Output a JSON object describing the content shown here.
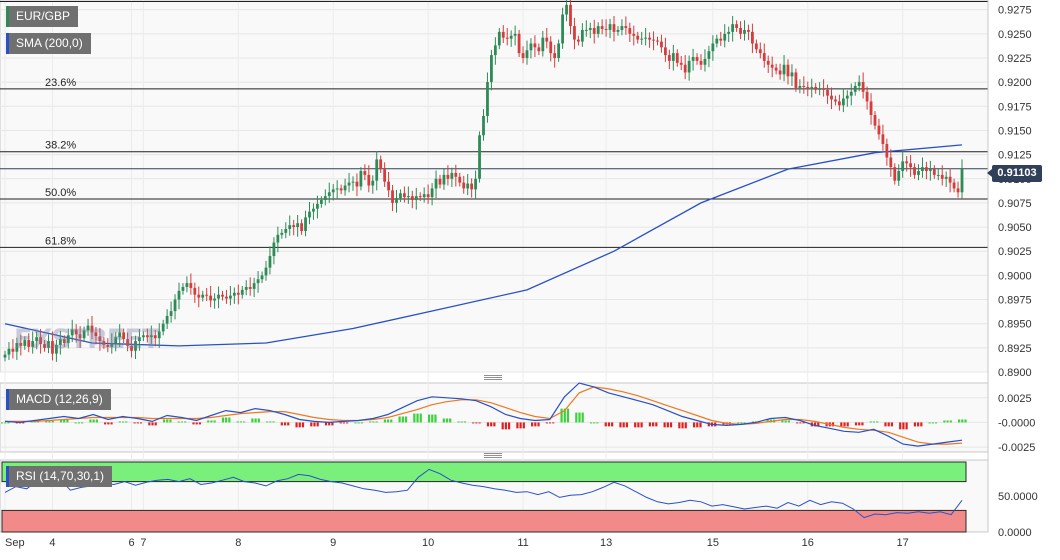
{
  "symbol_label": "EUR/GBP",
  "watermark": "FXSTREET",
  "last_price_label": "0.91103",
  "colors": {
    "up": "#2e8b57",
    "down": "#d63c3c",
    "sma": "#2850c8",
    "macd": "#2850c8",
    "signal": "#f07820",
    "rsi": "#2850c8",
    "overbought": "#7bef7b",
    "oversold": "#f38a8a"
  },
  "chart_data": [
    {
      "type": "candlestick",
      "title": "EUR/GBP",
      "ylim": [
        0.89,
        0.9285
      ],
      "y_ticks": [
        "0.9275",
        "0.9250",
        "0.9225",
        "0.9200",
        "0.9175",
        "0.9150",
        "0.9125",
        "0.9100",
        "0.9075",
        "0.9050",
        "0.9025",
        "0.9000",
        "0.8975",
        "0.8950",
        "0.8925",
        "0.8900"
      ],
      "x_tick_labels": [
        {
          "label": "Sep",
          "bar": 0
        },
        {
          "label": "4",
          "bar": 12
        },
        {
          "label": "6",
          "bar": 32
        },
        {
          "label": "7",
          "bar": 35
        },
        {
          "label": "8",
          "bar": 59
        },
        {
          "label": "9",
          "bar": 83
        },
        {
          "label": "10",
          "bar": 107
        },
        {
          "label": "11",
          "bar": 131
        },
        {
          "label": "13",
          "bar": 152
        },
        {
          "label": "15",
          "bar": 179
        },
        {
          "label": "16",
          "bar": 203
        },
        {
          "label": "17",
          "bar": 227
        }
      ],
      "closes": [
        0.8918,
        0.8924,
        0.8921,
        0.893,
        0.8927,
        0.8933,
        0.8926,
        0.8932,
        0.8936,
        0.8929,
        0.8925,
        0.8932,
        0.8919,
        0.8928,
        0.8934,
        0.893,
        0.8938,
        0.8944,
        0.8939,
        0.8935,
        0.8943,
        0.8948,
        0.8941,
        0.8937,
        0.8932,
        0.8928,
        0.8926,
        0.893,
        0.8936,
        0.8941,
        0.8934,
        0.8927,
        0.8922,
        0.8932,
        0.8936,
        0.8938,
        0.8936,
        0.8938,
        0.8935,
        0.8942,
        0.895,
        0.8958,
        0.8963,
        0.8975,
        0.8984,
        0.8988,
        0.8992,
        0.8987,
        0.898,
        0.8977,
        0.898,
        0.8979,
        0.8974,
        0.8976,
        0.898,
        0.8978,
        0.8976,
        0.8979,
        0.8982,
        0.898,
        0.8985,
        0.8988,
        0.8986,
        0.8992,
        0.8996,
        0.9,
        0.9008,
        0.902,
        0.9034,
        0.9042,
        0.9044,
        0.9048,
        0.9052,
        0.905,
        0.9054,
        0.9046,
        0.906,
        0.9066,
        0.9069,
        0.9074,
        0.9078,
        0.9082,
        0.9086,
        0.9089,
        0.909,
        0.9088,
        0.9093,
        0.9096,
        0.9097,
        0.9092,
        0.9108,
        0.9104,
        0.9093,
        0.9098,
        0.912,
        0.911,
        0.9097,
        0.9088,
        0.9075,
        0.908,
        0.9085,
        0.9081,
        0.9082,
        0.9078,
        0.9082,
        0.9081,
        0.9084,
        0.9081,
        0.909,
        0.91,
        0.9094,
        0.9104,
        0.91,
        0.9106,
        0.9102,
        0.9096,
        0.909,
        0.9095,
        0.9089,
        0.91,
        0.9145,
        0.9165,
        0.92,
        0.9228,
        0.9238,
        0.9252,
        0.9246,
        0.9245,
        0.9248,
        0.925,
        0.923,
        0.9225,
        0.9233,
        0.924,
        0.9236,
        0.9232,
        0.9246,
        0.9242,
        0.923,
        0.9225,
        0.924,
        0.927,
        0.928,
        0.9258,
        0.9244,
        0.9242,
        0.9254,
        0.9254,
        0.9256,
        0.925,
        0.9258,
        0.9255,
        0.9254,
        0.926,
        0.9252,
        0.9254,
        0.9258,
        0.9256,
        0.925,
        0.9248,
        0.9244,
        0.9245,
        0.9246,
        0.9244,
        0.9243,
        0.9242,
        0.9236,
        0.9228,
        0.9222,
        0.923,
        0.922,
        0.9218,
        0.921,
        0.9222,
        0.9226,
        0.9222,
        0.9218,
        0.9224,
        0.9232,
        0.924,
        0.9245,
        0.9243,
        0.925,
        0.9252,
        0.926,
        0.9256,
        0.925,
        0.9254,
        0.9252,
        0.924,
        0.9234,
        0.923,
        0.9222,
        0.9218,
        0.9215,
        0.9212,
        0.9208,
        0.9218,
        0.9206,
        0.921,
        0.9194,
        0.9196,
        0.9195,
        0.9194,
        0.9195,
        0.9192,
        0.9193,
        0.9192,
        0.9186,
        0.9182,
        0.918,
        0.9176,
        0.9183,
        0.9186,
        0.919,
        0.9196,
        0.92,
        0.919,
        0.918,
        0.9166,
        0.9155,
        0.9146,
        0.9136,
        0.9122,
        0.9112,
        0.9098,
        0.9108,
        0.9118,
        0.9116,
        0.9112,
        0.9104,
        0.9108,
        0.9112,
        0.9108,
        0.911,
        0.9104,
        0.9104,
        0.91,
        0.9102,
        0.9096,
        0.909,
        0.9086,
        0.911
      ],
      "sma_200": [
        0.895,
        0.893,
        0.8927,
        0.893,
        0.8945,
        0.8965,
        0.8985,
        0.9025,
        0.9075,
        0.911,
        0.9127,
        0.9135
      ],
      "sma_label": "SMA (200,0)",
      "fib_levels": [
        {
          "label": "23.6%",
          "value": 0.9193
        },
        {
          "label": "38.2%",
          "value": 0.9128
        },
        {
          "label": "50.0%",
          "value": 0.9079
        },
        {
          "label": "61.8%",
          "value": 0.9029
        }
      ],
      "last_price": 0.91103
    },
    {
      "type": "macd",
      "title": "MACD (12,26,9)",
      "ylim": [
        -0.003,
        0.004
      ],
      "y_ticks": [
        "0.0025",
        "-0.0000",
        "-0.0025"
      ],
      "macd_line": [
        0.0001,
        0.0,
        0.0002,
        0.0004,
        0.0006,
        0.0004,
        0.0008,
        0.0003,
        0.0006,
        0.0004,
        0.0001,
        0.0007,
        0.0005,
        0.0002,
        0.0007,
        0.0012,
        0.001,
        0.0014,
        0.0012,
        0.0008,
        0.0003,
        0.0001,
        0.0,
        0.0001,
        0.0002,
        0.0004,
        0.0008,
        0.0015,
        0.0022,
        0.0026,
        0.0025,
        0.0024,
        0.0022,
        0.0016,
        0.0008,
        0.0004,
        0.0002,
        0.0003,
        0.0026,
        0.004,
        0.0036,
        0.003,
        0.0026,
        0.0022,
        0.0018,
        0.0012,
        0.0006,
        0.0002,
        -0.0002,
        -0.0003,
        -0.0002,
        0.0,
        0.0004,
        0.0005,
        0.0002,
        -0.0003,
        -0.0006,
        -0.0009,
        -0.001,
        -0.0007,
        -0.0014,
        -0.0022,
        -0.0024,
        -0.0022,
        -0.002,
        -0.0018
      ],
      "signal_line": [
        0.0001,
        0.0001,
        0.0001,
        0.0002,
        0.0003,
        0.0004,
        0.0005,
        0.0005,
        0.0005,
        0.0005,
        0.0004,
        0.0004,
        0.0004,
        0.0004,
        0.0005,
        0.0007,
        0.0009,
        0.001,
        0.0011,
        0.0011,
        0.0008,
        0.0005,
        0.0003,
        0.0002,
        0.0002,
        0.0003,
        0.0005,
        0.0009,
        0.0013,
        0.0018,
        0.0021,
        0.0023,
        0.0023,
        0.002,
        0.0015,
        0.001,
        0.0006,
        0.0004,
        0.0012,
        0.003,
        0.0036,
        0.0034,
        0.0031,
        0.0027,
        0.0022,
        0.0017,
        0.0012,
        0.0007,
        0.0002,
        -0.0001,
        -0.0002,
        -0.0001,
        0.0001,
        0.0003,
        0.0003,
        0.0001,
        -0.0002,
        -0.0005,
        -0.0007,
        -0.0008,
        -0.001,
        -0.0015,
        -0.002,
        -0.0022,
        -0.0022,
        -0.0021
      ]
    },
    {
      "type": "rsi",
      "title": "RSI (14,70,30,1)",
      "ylim": [
        0,
        100
      ],
      "y_ticks": [
        "50.0000",
        "0.0000"
      ],
      "overbought": 70,
      "oversold": 30,
      "values": [
        55,
        63,
        60,
        72,
        80,
        75,
        58,
        62,
        64,
        68,
        66,
        70,
        65,
        69,
        72,
        73,
        70,
        74,
        66,
        68,
        72,
        76,
        70,
        68,
        64,
        71,
        74,
        80,
        78,
        73,
        70,
        68,
        64,
        60,
        58,
        55,
        56,
        58,
        76,
        87,
        81,
        72,
        68,
        65,
        63,
        60,
        58,
        55,
        56,
        52,
        56,
        48,
        51,
        52,
        56,
        62,
        69,
        64,
        56,
        48,
        42,
        39,
        41,
        44,
        42,
        36,
        38,
        35,
        32,
        34,
        36,
        33,
        41,
        36,
        44,
        38,
        42,
        40,
        32,
        20,
        25,
        24,
        27,
        26,
        28,
        26,
        28,
        24,
        44
      ]
    }
  ]
}
